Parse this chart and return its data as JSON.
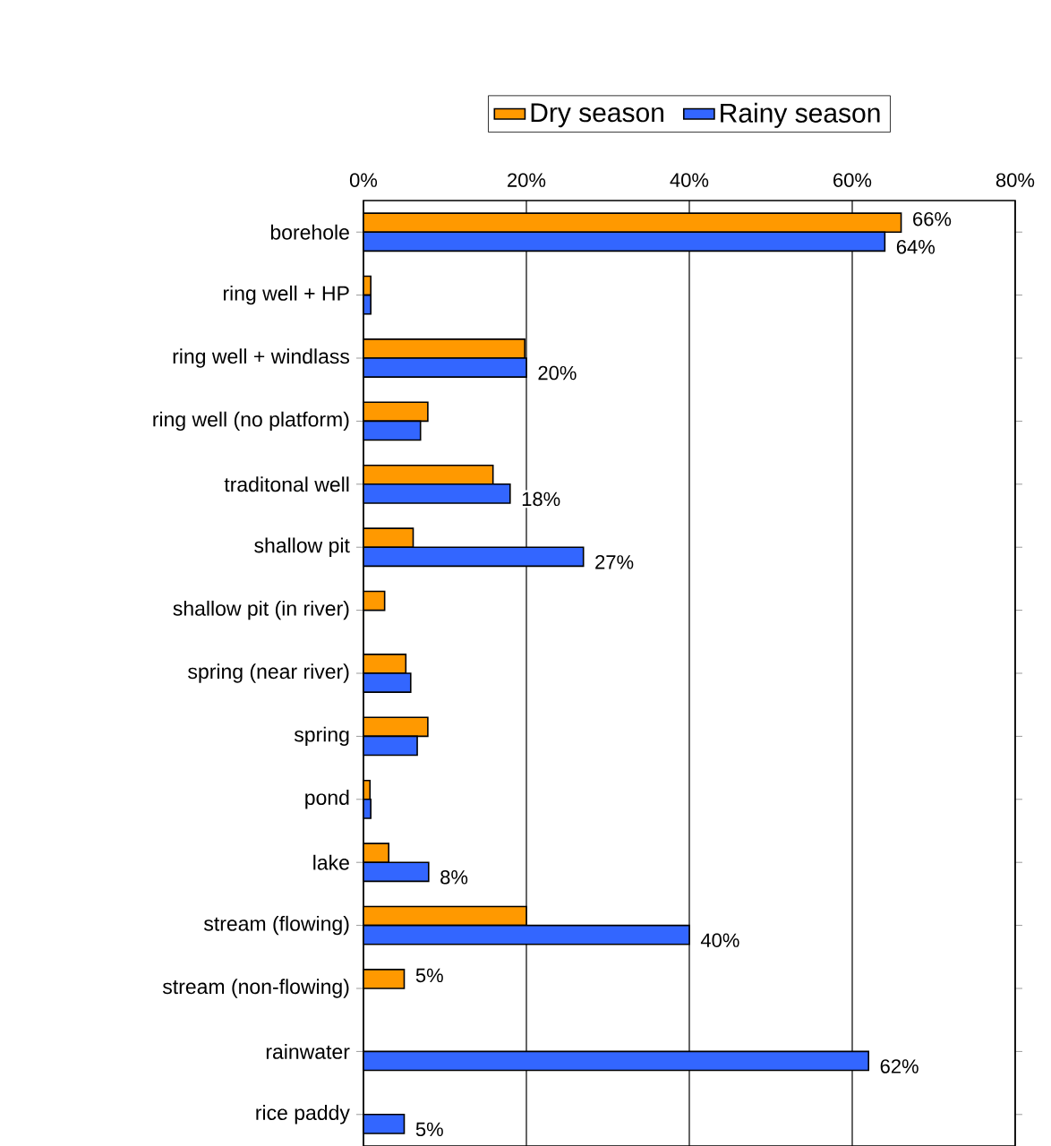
{
  "chart_data": {
    "type": "bar",
    "orientation": "horizontal",
    "categories": [
      "borehole",
      "ring well + HP",
      "ring well + windlass",
      "ring well (no platform)",
      "traditonal well",
      "shallow pit",
      "shallow pit (in river)",
      "spring (near river)",
      "spring",
      "pond",
      "lake",
      "stream (flowing)",
      "stream (non-flowing)",
      "rainwater",
      "rice paddy"
    ],
    "series": [
      {
        "name": "Dry season",
        "color": "#ff9900",
        "values": [
          66,
          0.9,
          19.8,
          7.9,
          15.9,
          6.1,
          2.6,
          5.2,
          7.9,
          0.8,
          3.1,
          20,
          5,
          null,
          null
        ],
        "value_labels": [
          "66%",
          null,
          null,
          null,
          null,
          null,
          null,
          null,
          null,
          null,
          null,
          null,
          "5%",
          null,
          null
        ]
      },
      {
        "name": "Rainy season",
        "color": "#3366ff",
        "values": [
          64,
          0.9,
          20,
          7,
          18,
          27,
          null,
          5.8,
          6.6,
          0.9,
          8,
          40,
          null,
          62,
          5
        ],
        "value_labels": [
          "64%",
          null,
          "20%",
          null,
          "18%",
          "27%",
          null,
          null,
          null,
          null,
          "8%",
          "40%",
          null,
          "62%",
          "5%"
        ]
      }
    ],
    "xlim": [
      0,
      80
    ],
    "xticks": [
      {
        "value": 0,
        "label": "0%"
      },
      {
        "value": 20,
        "label": "20%"
      },
      {
        "value": 40,
        "label": "40%"
      },
      {
        "value": 60,
        "label": "60%"
      },
      {
        "value": 80,
        "label": "80%"
      }
    ],
    "grid": "x",
    "legend": "top"
  }
}
